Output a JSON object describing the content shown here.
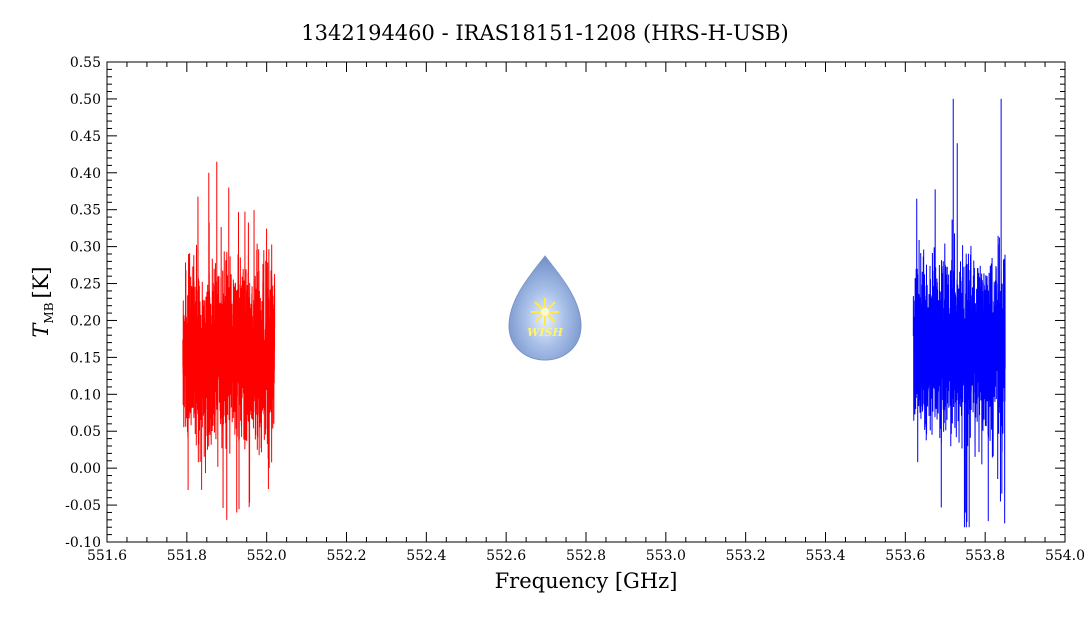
{
  "chart_data": {
    "type": "line",
    "title": "1342194460 - IRAS18151-1208 (HRS-H-USB)",
    "xlabel": "Frequency [GHz]",
    "ylabel": {
      "main": "T",
      "sub": "MB",
      "unit": "[K]"
    },
    "xlim": [
      551.6,
      554.0
    ],
    "ylim": [
      -0.1,
      0.55
    ],
    "xticks": [
      "551.6",
      "551.8",
      "552.0",
      "552.2",
      "552.4",
      "552.6",
      "552.8",
      "553.0",
      "553.2",
      "553.4",
      "553.6",
      "553.8",
      "554.0"
    ],
    "yticks": [
      "-0.10",
      "-0.05",
      "0.00",
      "0.05",
      "0.10",
      "0.15",
      "0.20",
      "0.25",
      "0.30",
      "0.35",
      "0.40",
      "0.45",
      "0.50",
      "0.55"
    ],
    "grid": false,
    "legend": "none",
    "series": [
      {
        "color": "#ff0000",
        "x_range": [
          551.79,
          552.02
        ],
        "mean": 0.155,
        "approx_min": -0.07,
        "approx_max": 0.415,
        "peaks": [
          {
            "x": 551.875,
            "y": 0.415
          },
          {
            "x": 551.855,
            "y": 0.4
          },
          {
            "x": 551.905,
            "y": 0.38
          },
          {
            "x": 551.9,
            "y": -0.07
          },
          {
            "x": 551.925,
            "y": -0.06
          }
        ]
      },
      {
        "color": "#0000ff",
        "x_range": [
          553.62,
          553.85
        ],
        "mean": 0.165,
        "approx_min": -0.08,
        "approx_max": 0.5,
        "peaks": [
          {
            "x": 553.72,
            "y": 0.5
          },
          {
            "x": 553.84,
            "y": 0.5
          },
          {
            "x": 553.73,
            "y": 0.44
          },
          {
            "x": 553.76,
            "y": -0.08
          },
          {
            "x": 553.75,
            "y": -0.06
          }
        ]
      }
    ],
    "logo": {
      "text": "WISH",
      "colors": {
        "drop": "#8fa8d8",
        "star": "#ffee66"
      }
    }
  }
}
